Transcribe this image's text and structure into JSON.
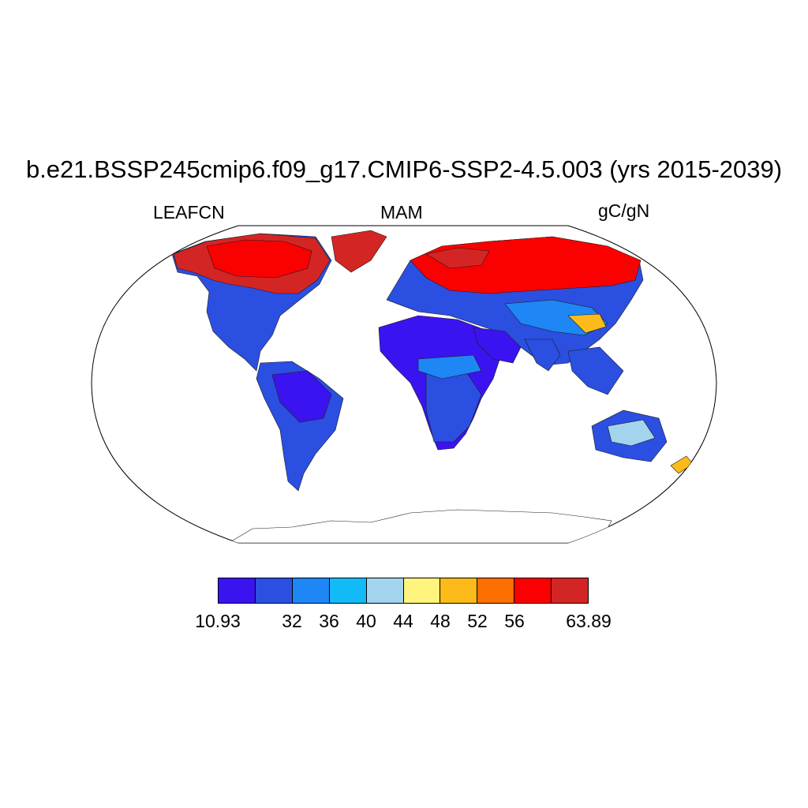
{
  "title": "b.e21.BSSP245cmip6.f09_g17.CMIP6-SSP2-4.5.003 (yrs 2015-2039)",
  "left_label": "LEAFCN",
  "center_label": "MAM",
  "right_label": "gC/gN",
  "colorbar": {
    "colors": [
      "#3b13f0",
      "#2b4fe0",
      "#1f86f5",
      "#12bbf7",
      "#a3d4ee",
      "#fff47d",
      "#fdbb1a",
      "#fd6f00",
      "#fb0000",
      "#d42525"
    ],
    "ticks": [
      "10.93",
      "32",
      "36",
      "40",
      "44",
      "48",
      "52",
      "56",
      "63.89"
    ]
  }
}
